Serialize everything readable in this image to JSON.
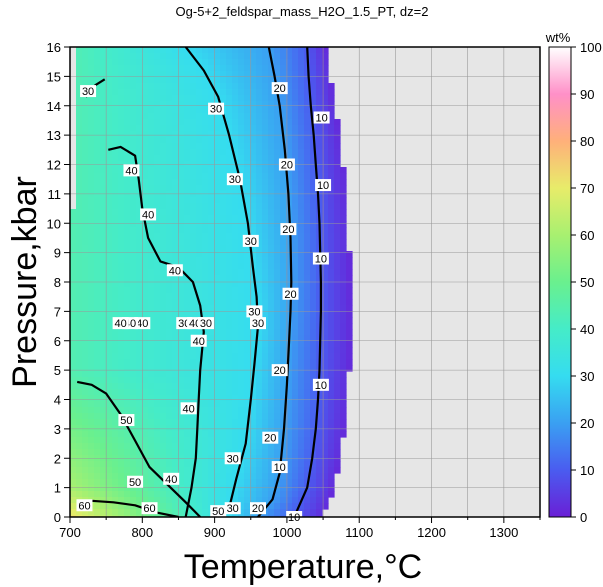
{
  "chart_data": {
    "type": "heatmap",
    "title": "Og-5+2_feldspar_mass_H2O_1.5_PT, dz=2",
    "xlabel": "Temperature,°C",
    "ylabel": "Pressure,kbar",
    "xlim": [
      700,
      1350
    ],
    "ylim": [
      0,
      16
    ],
    "xticks": [
      700,
      800,
      900,
      1000,
      1100,
      1200,
      1300
    ],
    "yticks": [
      0,
      1,
      2,
      3,
      4,
      5,
      6,
      7,
      8,
      9,
      10,
      11,
      12,
      13,
      14,
      15,
      16
    ],
    "grid": true,
    "colorbar": {
      "label": "wt%",
      "range": [
        0,
        100
      ],
      "ticks": [
        0,
        10,
        20,
        30,
        40,
        50,
        60,
        70,
        80,
        90,
        100
      ],
      "stops": [
        "#6a1fd6",
        "#4a5cf0",
        "#3aa0f2",
        "#35dcf0",
        "#45ecc8",
        "#6af08e",
        "#a8f070",
        "#e8ec6a",
        "#ffb07a",
        "#ff90c8",
        "#ffffff"
      ]
    },
    "no_data_color": "#e6e6e6",
    "boundary": {
      "description_free": true,
      "T_at_P": [
        [
          0,
          1050
        ],
        [
          1,
          1064
        ],
        [
          2,
          1073
        ],
        [
          3,
          1079
        ],
        [
          4,
          1083
        ],
        [
          5,
          1086
        ],
        [
          6,
          1088
        ],
        [
          7,
          1088
        ],
        [
          8,
          1087
        ],
        [
          9,
          1086
        ],
        [
          10,
          1084
        ],
        [
          11,
          1081
        ],
        [
          12,
          1077
        ],
        [
          13,
          1072
        ],
        [
          14,
          1066
        ],
        [
          15,
          1060
        ],
        [
          16,
          1052
        ]
      ]
    },
    "contours": [
      {
        "level": 10,
        "points": [
          [
            1010,
            0
          ],
          [
            1028,
            1
          ],
          [
            1035,
            2
          ],
          [
            1040,
            3
          ],
          [
            1043,
            4
          ],
          [
            1045,
            5
          ],
          [
            1046,
            6
          ],
          [
            1047,
            7
          ],
          [
            1047,
            8
          ],
          [
            1046,
            9
          ],
          [
            1045,
            10
          ],
          [
            1043,
            11
          ],
          [
            1040,
            12
          ],
          [
            1037,
            13
          ],
          [
            1033,
            14
          ],
          [
            1030,
            15
          ],
          [
            1028,
            16
          ]
        ]
      },
      {
        "level": 20,
        "points": [
          [
            960,
            0
          ],
          [
            980,
            0.6
          ],
          [
            990,
            1.5
          ],
          [
            996,
            3
          ],
          [
            1000,
            4.5
          ],
          [
            1003,
            6
          ],
          [
            1005,
            7
          ],
          [
            1006,
            8
          ],
          [
            1005,
            9.5
          ],
          [
            1002,
            11
          ],
          [
            997,
            12.5
          ],
          [
            990,
            14
          ],
          [
            983,
            15
          ],
          [
            975,
            16
          ]
        ]
      },
      {
        "level": 30,
        "points": [
          [
            920,
            0.3
          ],
          [
            930,
            1.3
          ],
          [
            943,
            2.5
          ],
          [
            950,
            4
          ],
          [
            955,
            5.2
          ],
          [
            960,
            6.5
          ],
          [
            958,
            7.5
          ],
          [
            953,
            8.5
          ],
          [
            946,
            10
          ],
          [
            935,
            11.5
          ],
          [
            920,
            13
          ],
          [
            905,
            14.3
          ],
          [
            885,
            15.2
          ],
          [
            860,
            16
          ]
        ]
      },
      {
        "level": 40,
        "points": [
          [
            860,
            0
          ],
          [
            868,
            1
          ],
          [
            874,
            2
          ],
          [
            876,
            3
          ],
          [
            878,
            4
          ],
          [
            880,
            5
          ],
          [
            885,
            6.3
          ],
          [
            880,
            7.2
          ],
          [
            870,
            8
          ],
          [
            850,
            8.5
          ],
          [
            825,
            8.7
          ],
          [
            808,
            9.5
          ],
          [
            800,
            10.5
          ],
          [
            795,
            11.5
          ],
          [
            790,
            12.3
          ],
          [
            770,
            12.6
          ],
          [
            753,
            12.5
          ]
        ]
      },
      {
        "level": 50,
        "points": [
          [
            880,
            0
          ],
          [
            860,
            0.5
          ],
          [
            835,
            1.1
          ],
          [
            810,
            1.7
          ],
          [
            790,
            2.6
          ],
          [
            770,
            3.5
          ],
          [
            750,
            4.2
          ],
          [
            730,
            4.5
          ],
          [
            710,
            4.6
          ]
        ]
      },
      {
        "level": 60,
        "points": [
          [
            850,
            0
          ],
          [
            820,
            0.15
          ],
          [
            790,
            0.4
          ],
          [
            760,
            0.5
          ],
          [
            730,
            0.55
          ],
          [
            710,
            0.5
          ]
        ]
      },
      {
        "level": 30,
        "points": [
          [
            722,
            14.3
          ],
          [
            735,
            14.7
          ],
          [
            748,
            14.9
          ]
        ]
      }
    ],
    "contour_labels": [
      {
        "x": 1010,
        "y": 0,
        "text": "10"
      },
      {
        "x": 1047,
        "y": 4.5,
        "text": "10"
      },
      {
        "x": 1047,
        "y": 8.8,
        "text": "10"
      },
      {
        "x": 1050,
        "y": 11.3,
        "text": "10"
      },
      {
        "x": 1048,
        "y": 13.6,
        "text": "10"
      },
      {
        "x": 990,
        "y": 1.7,
        "text": "10"
      },
      {
        "x": 960,
        "y": 0.3,
        "text": "20"
      },
      {
        "x": 977,
        "y": 2.7,
        "text": "20"
      },
      {
        "x": 990,
        "y": 5.0,
        "text": "20"
      },
      {
        "x": 1005,
        "y": 7.6,
        "text": "20"
      },
      {
        "x": 1002,
        "y": 9.8,
        "text": "20"
      },
      {
        "x": 1000,
        "y": 12.0,
        "text": "20"
      },
      {
        "x": 990,
        "y": 14.6,
        "text": "20"
      },
      {
        "x": 925,
        "y": 0.3,
        "text": "30"
      },
      {
        "x": 925,
        "y": 2.0,
        "text": "30"
      },
      {
        "x": 960,
        "y": 6.6,
        "text": "30"
      },
      {
        "x": 955,
        "y": 7.0,
        "text": "30"
      },
      {
        "x": 950,
        "y": 9.4,
        "text": "30"
      },
      {
        "x": 928,
        "y": 11.5,
        "text": "30"
      },
      {
        "x": 902,
        "y": 13.9,
        "text": "30"
      },
      {
        "x": 725,
        "y": 14.5,
        "text": "30"
      },
      {
        "x": 905,
        "y": 0.2,
        "text": "50"
      },
      {
        "x": 858,
        "y": 6.6,
        "text": "30"
      },
      {
        "x": 808,
        "y": 10.3,
        "text": "40"
      },
      {
        "x": 785,
        "y": 11.8,
        "text": "40"
      },
      {
        "x": 845,
        "y": 8.4,
        "text": "40"
      },
      {
        "x": 878,
        "y": 6.0,
        "text": "40"
      },
      {
        "x": 864,
        "y": 3.7,
        "text": "40"
      },
      {
        "x": 840,
        "y": 1.3,
        "text": "40"
      },
      {
        "x": 873,
        "y": 6.6,
        "text": "40"
      },
      {
        "x": 888,
        "y": 6.6,
        "text": "30"
      },
      {
        "x": 800,
        "y": 6.6,
        "text": "40"
      },
      {
        "x": 783,
        "y": 6.6,
        "text": "40"
      },
      {
        "x": 778,
        "y": 3.3,
        "text": "50"
      },
      {
        "x": 790,
        "y": 1.2,
        "text": "50"
      },
      {
        "x": 810,
        "y": 0.3,
        "text": "60"
      },
      {
        "x": 720,
        "y": 0.4,
        "text": "60"
      },
      {
        "x": 770,
        "y": 6.6,
        "text": "40"
      }
    ]
  }
}
